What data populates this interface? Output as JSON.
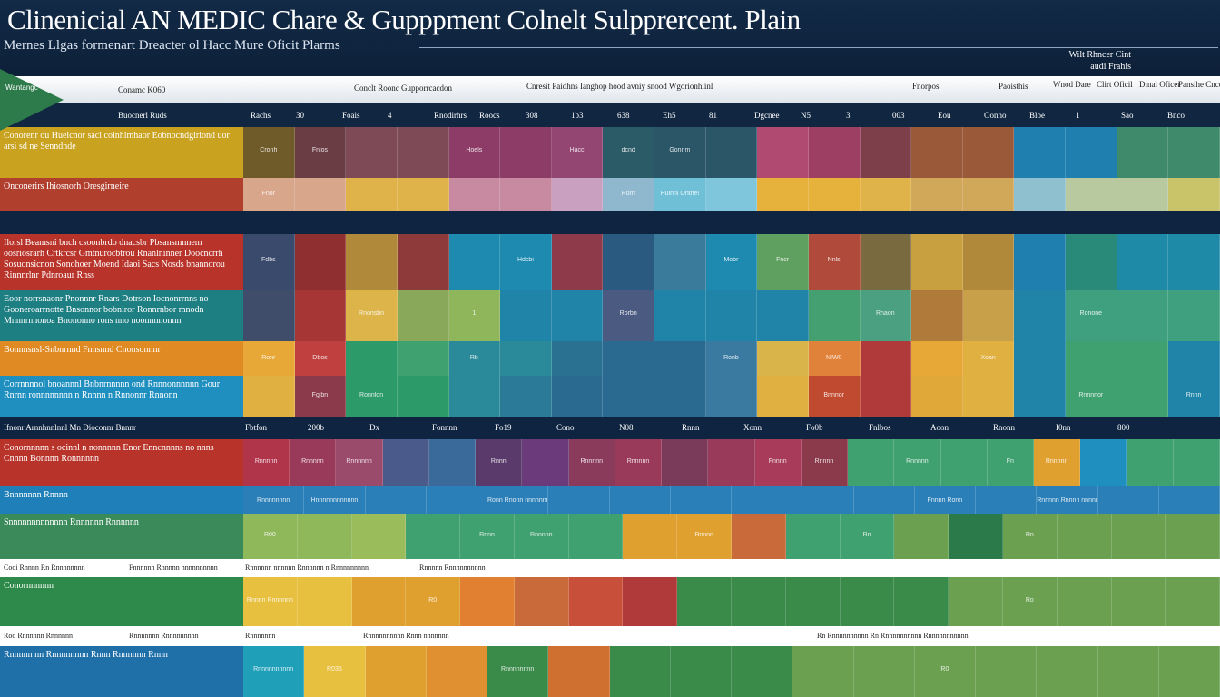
{
  "header": {
    "title": "Clinenicial AN MEDIC Chare & Gupppment Colnelt Sulpprercent. Plain",
    "subtitle": "Mernes Llgas formenart Dreacter ol Hacc Mure Oficit Plarms",
    "topright_line1": "Wilt Rhncer Cint",
    "topright_line2": "audi Frahis"
  },
  "logo": {
    "label": "Wantangc"
  },
  "column_headers": [
    "Conamc K060",
    "Conclt Roonc Gupporrcacdon",
    "Cnresit Paidhns Ianghop hood avniy snood Wgorionhiinl",
    "Fnorpos",
    "Paoisthis",
    "Wnod Dare",
    "Clirt Oficil",
    "Dinal Oficet",
    "Pansihe Cncdiere"
  ],
  "row_header": {
    "label": "Buocnerl Ruds",
    "cols": [
      "Rachs",
      "30",
      "Foais",
      "4",
      "Rnodirhrs",
      "Roocs",
      "308",
      "1b3",
      "638",
      "Eh5",
      "81",
      "Dgcnee",
      "N5",
      "3",
      "003",
      "Eou",
      "Oonno",
      "Bloe",
      "1",
      "Sao",
      "Bnco"
    ]
  },
  "bands": [
    {
      "label": "Conorenr ou Hueicnor sacl colnhlmhaor Eobnocndgiriond uor arsi sd ne Senndnde",
      "color": "#c9a21f",
      "cells": [
        "#6f5a2a",
        "#6a3d44",
        "#7d4a55",
        "#7d4a55",
        "#8c3c66",
        "#8c3c66",
        "#944672",
        "#2c5b68",
        "#2a5668",
        "#2a5668",
        "#b04a70",
        "#9c3f63",
        "#7d3f4a",
        "#9a5a3a",
        "#9a5a3a",
        "#1f7fae",
        "#1f7fae",
        "#3f8a6a",
        "#3f8a6a"
      ],
      "cell_text": [
        "Cronh",
        "Fnlos",
        "",
        "",
        "Hoels",
        "",
        "Hacc",
        "dcnd",
        "Gonnm",
        "",
        "",
        "",
        "",
        "",
        "",
        "",
        "",
        "",
        ""
      ]
    },
    {
      "label": "Onconerirs Ihiosnorh Oresgirneire",
      "color": "#b03f2e",
      "cells": [
        "#d8a68a",
        "#d8a68a",
        "#e0b24a",
        "#e0b24a",
        "#c88aa0",
        "#c88aa0",
        "#caa0c0",
        "#8fb8cf",
        "#6fc0d6",
        "#7fc6dd",
        "#e6b23b",
        "#e6b23b",
        "#e0b24a",
        "#d1a75a",
        "#d1a75a",
        "#8fc0d0",
        "#b8c9a0",
        "#b8c9a0",
        "#c9c36a"
      ],
      "cell_text": [
        "Fnor",
        "",
        "",
        "",
        "",
        "",
        "",
        "Rorn",
        "Hulnnl Ontnel",
        "",
        "",
        "",
        "",
        "",
        "",
        "",
        "",
        "",
        ""
      ]
    },
    {
      "label": "Ilorsl Beamsni bnch csoonbrdo dnacsbr Pbsansmnnem oosriosrarh Crtkrcsr Gmtnurocbtrou Rnanlninner Doocncrrh Sosuonsicnon Sonohoer Moend Idaoi Sacs Nosds bnannorou Rinnnrlnr Pdnroaur Rnss",
      "color": "#b8342a",
      "cells": [
        "#3a4a6c",
        "#8f2f2f",
        "#b08a3a",
        "#8f3a3a",
        "#1e8ab0",
        "#1e8ab0",
        "#8f3a4a",
        "#2a5a80",
        "#3a7a9a",
        "#1e8ab0",
        "#5fa060",
        "#b04a3a",
        "#7a6a40",
        "#c8a040",
        "#b08a3a",
        "#1f7fae",
        "#2a8a7a",
        "#1f8aa8",
        "#1f8aa8"
      ],
      "cell_text": [
        "Fdbs",
        "",
        "",
        "",
        "",
        "Hdcbi",
        "",
        "",
        "",
        "Mobr",
        "Fncr",
        "Nnls",
        "",
        "",
        "",
        "",
        "",
        "",
        ""
      ]
    },
    {
      "label": "Eoor norrsnaonr Pnonnnr Rnars Dotrson Iocnonrrnns no Gooneroarrnotte Bnsonnor bobniror Ronnrnbor mnodn Mnnnrnnonoa Bnononno rons nno noonnnnonnn",
      "color": "#1e7f83",
      "cells": [
        "#3f4d6a",
        "#a63636",
        "#dcb44a",
        "#8aa85a",
        "#8fb65a",
        "#1f84a8",
        "#1f84a8",
        "#4a5a80",
        "#1f84a8",
        "#1f84a8",
        "#1f84a8",
        "#44a070",
        "#4aa080",
        "#b07a3a",
        "#c8a04a",
        "#1f84a8",
        "#3fa080",
        "#3fa080",
        "#3fa080"
      ],
      "cell_text": [
        "",
        "",
        "Rnonsbn",
        "",
        "1",
        "",
        "",
        "Rorbn",
        "",
        "",
        "",
        "",
        "Rnaon",
        "",
        "",
        "",
        "Ronone",
        "",
        ""
      ]
    },
    {
      "label": "Bonnnsnsl-Snbnrnnd Fnnsnnd Cnonsonnnr",
      "color": "#e08a24",
      "cells": [
        "#e8a838",
        "#c04040",
        "#2d9a6a",
        "#3fa070",
        "#2a8a9a",
        "#2a8a9a",
        "#2a7090",
        "#2a6a90",
        "#2a6a90",
        "#3a7aa0",
        "#d9b44a",
        "#e0823a",
        "#b03a3a",
        "#e8a838",
        "#e0b040",
        "#1f84a8",
        "#3fa070",
        "#3fa070",
        "#1f84a8"
      ],
      "cell_text": [
        "Ronr",
        "Dbos",
        "",
        "",
        "Rb",
        "",
        "",
        "",
        "",
        "Ronb",
        "",
        "NIW0",
        "",
        "",
        "Xoan",
        "",
        "",
        "",
        ""
      ]
    },
    {
      "label": "Corrnnnnol bnoannnl Bnbnrnnnnn ond Rnnnonnnnnn Gour Rnrnn ronnnnnnnn n Rnnnn n Rnnonnr Rnnonn",
      "color": "#1f8fc0",
      "cells": [
        "#e0b040",
        "#8a3a4a",
        "#2d9a6a",
        "#2d9a6a",
        "#2a8a9a",
        "#2a7a98",
        "#2a6a90",
        "#2a6a90",
        "#2a6a90",
        "#3a7aa0",
        "#e0b040",
        "#c04a30",
        "#b03a3a",
        "#e0a838",
        "#e0b040",
        "#1f84a8",
        "#3fa070",
        "#3fa070",
        "#1f84a8"
      ],
      "cell_text": [
        "",
        "Fgibn",
        "Ronnlon",
        "",
        "",
        "",
        "",
        "",
        "",
        "",
        "",
        "Bnnnor",
        "",
        "",
        "",
        "",
        "Rnnnnor",
        "",
        "Rnnn"
      ]
    }
  ],
  "dark_strip_1": {
    "label": "Ifnonr Arnnhnnlnnl Mn Dioconnr Bnnnr",
    "cols": [
      "Fbtfon",
      "200b",
      "Dx",
      "Fonnnn",
      "Fo19",
      "Cono",
      "N08",
      "Rnnn",
      "Xonn",
      "Fo0b",
      "Fnlbos",
      "Aoon",
      "Rnonn",
      "I0nn",
      "800"
    ]
  },
  "bands_b": [
    {
      "label": "Conornnnnn s ocinnl n nonnnnn Enor Enncnnnns no nnns Cnnnn Bonnnn Ronnnnnn",
      "color": "#b8342a",
      "cells": [
        "#b0344a",
        "#9a3a5a",
        "#9a4a6a",
        "#4a5a8a",
        "#3a6a9a",
        "#5a3a6a",
        "#6a3a7a",
        "#8a3a5a",
        "#9a3a5a",
        "#7a3a5a",
        "#9a3a5a",
        "#a83a5a",
        "#8a3a4a",
        "#3fa070",
        "#3fa070",
        "#3fa070",
        "#3fa070",
        "#e0a030",
        "#1f8fc0",
        "#3fa070",
        "#3fa070"
      ],
      "cell_text": [
        "Rnnnnn",
        "Rnnnnn",
        "Rnnnnnn",
        "",
        "",
        "Rnnn",
        "",
        "Rnnnnn",
        "Rnnnnn",
        "",
        "",
        "Fnnnn",
        "Rnnnn",
        "",
        "Rnnnnn",
        "",
        "Fn",
        "Rnnnnn",
        "",
        "",
        ""
      ]
    },
    {
      "label": "Bnnnnnnn Rnnnn",
      "color": "#1f7fb8",
      "cells": [
        "#2a7fb8",
        "#2a7fb8",
        "#2a7fb8",
        "#2a7fb8",
        "#2a7fb8",
        "#2a7fb8",
        "#2a7fb8",
        "#2a7fb8",
        "#2a7fb8",
        "#2a7fb8",
        "#2a7fb8",
        "#2a7fb8",
        "#2a7fb8",
        "#2a7fb8",
        "#2a7fb8",
        "#2a7fb8"
      ],
      "cell_text": [
        "Rnnnnnnnn",
        "Hnnnnnnnnnnnn",
        "",
        "",
        "Ronn Rnonn nnnnnnnnnn",
        "",
        "",
        "",
        "",
        "",
        "",
        "Fnnnn Ronn",
        "",
        "Rnnnnn Rnnnn nnnnnnn",
        "",
        ""
      ]
    },
    {
      "label": "Snnnnnnnnnnnnn Rnnnnnn Rnnnnnn",
      "color": "#3a8a5a",
      "cells": [
        "#8fb85a",
        "#8fb85a",
        "#9abc5a",
        "#3fa070",
        "#3fa070",
        "#3fa070",
        "#3fa070",
        "#e0a030",
        "#e0a030",
        "#c86a3a",
        "#3fa070",
        "#3fa070",
        "#6aa050",
        "#2a7a4a",
        "#6aa050",
        "#6aa050",
        "#6aa050",
        "#6aa050"
      ],
      "cell_text": [
        "R00",
        "",
        "",
        "",
        "Rnnn",
        "Rnnnnn",
        "",
        "",
        "Rnnnn",
        "",
        "",
        "Rn",
        "",
        "",
        "Rn",
        "",
        "",
        ""
      ]
    }
  ],
  "light_strip_1": {
    "cols": [
      "Cooi Rnnnn Rn Rnnnnnnnn",
      "Fnnnnnn Rnnnnn nnnnnnnnnn",
      "Rnnnnnn nnnnnn Rnnnnnn n Rnnnnnnnnn",
      "Rnnnnn Rnnnnnnnnnn"
    ]
  },
  "bands_c": [
    {
      "label": "Conornnnnnn",
      "color": "#2d8a4a",
      "cells": [
        "#e8c040",
        "#e8c040",
        "#e0a030",
        "#e0a030",
        "#e08030",
        "#c86a3a",
        "#c8503a",
        "#b03a3a",
        "#3a8a4a",
        "#3a8a4a",
        "#3a8a4a",
        "#3a8a4a",
        "#3a8a4a",
        "#6aa050",
        "#6aa050",
        "#6aa050",
        "#6aa050",
        "#6aa050"
      ],
      "cell_text": [
        "Rnnnn Rnnnnnn",
        "",
        "",
        "R0",
        "",
        "",
        "",
        "",
        "",
        "",
        "",
        "",
        "",
        "",
        "Ro",
        "",
        "",
        ""
      ]
    }
  ],
  "light_strip_2": {
    "cols": [
      "Roo Rnnnnnn Rnnnnnn",
      "Rnnnnnnn Rnnnnnnnnn",
      "Rnnnnnnn",
      "Rnnnnnnnnnn Rnnn nnnnnnn",
      "Rn Rnnnnnnnnnn Rn Rnnnnnnnnnn Rnnnnnnnnnnn"
    ]
  },
  "bands_d": [
    {
      "label": "Rnnnnn nn Rnnnnnnnn Rnnn Rnnnnnn Rnnn",
      "color": "#1f6fa8",
      "cells": [
        "#1f9fb8",
        "#e8c040",
        "#e0a030",
        "#e09030",
        "#3a8a4a",
        "#d07030",
        "#3a8a4a",
        "#3a8a4a",
        "#3a8a4a",
        "#6aa050",
        "#6aa050",
        "#6aa050",
        "#6aa050",
        "#6aa050",
        "#6aa050",
        "#6aa050"
      ],
      "cell_text": [
        "Rnnnnnnnnnn",
        "R035",
        "",
        "",
        "Rnnnnnnnn",
        "",
        "",
        "",
        "",
        "",
        "",
        "R0",
        "",
        "",
        "",
        ""
      ]
    }
  ]
}
